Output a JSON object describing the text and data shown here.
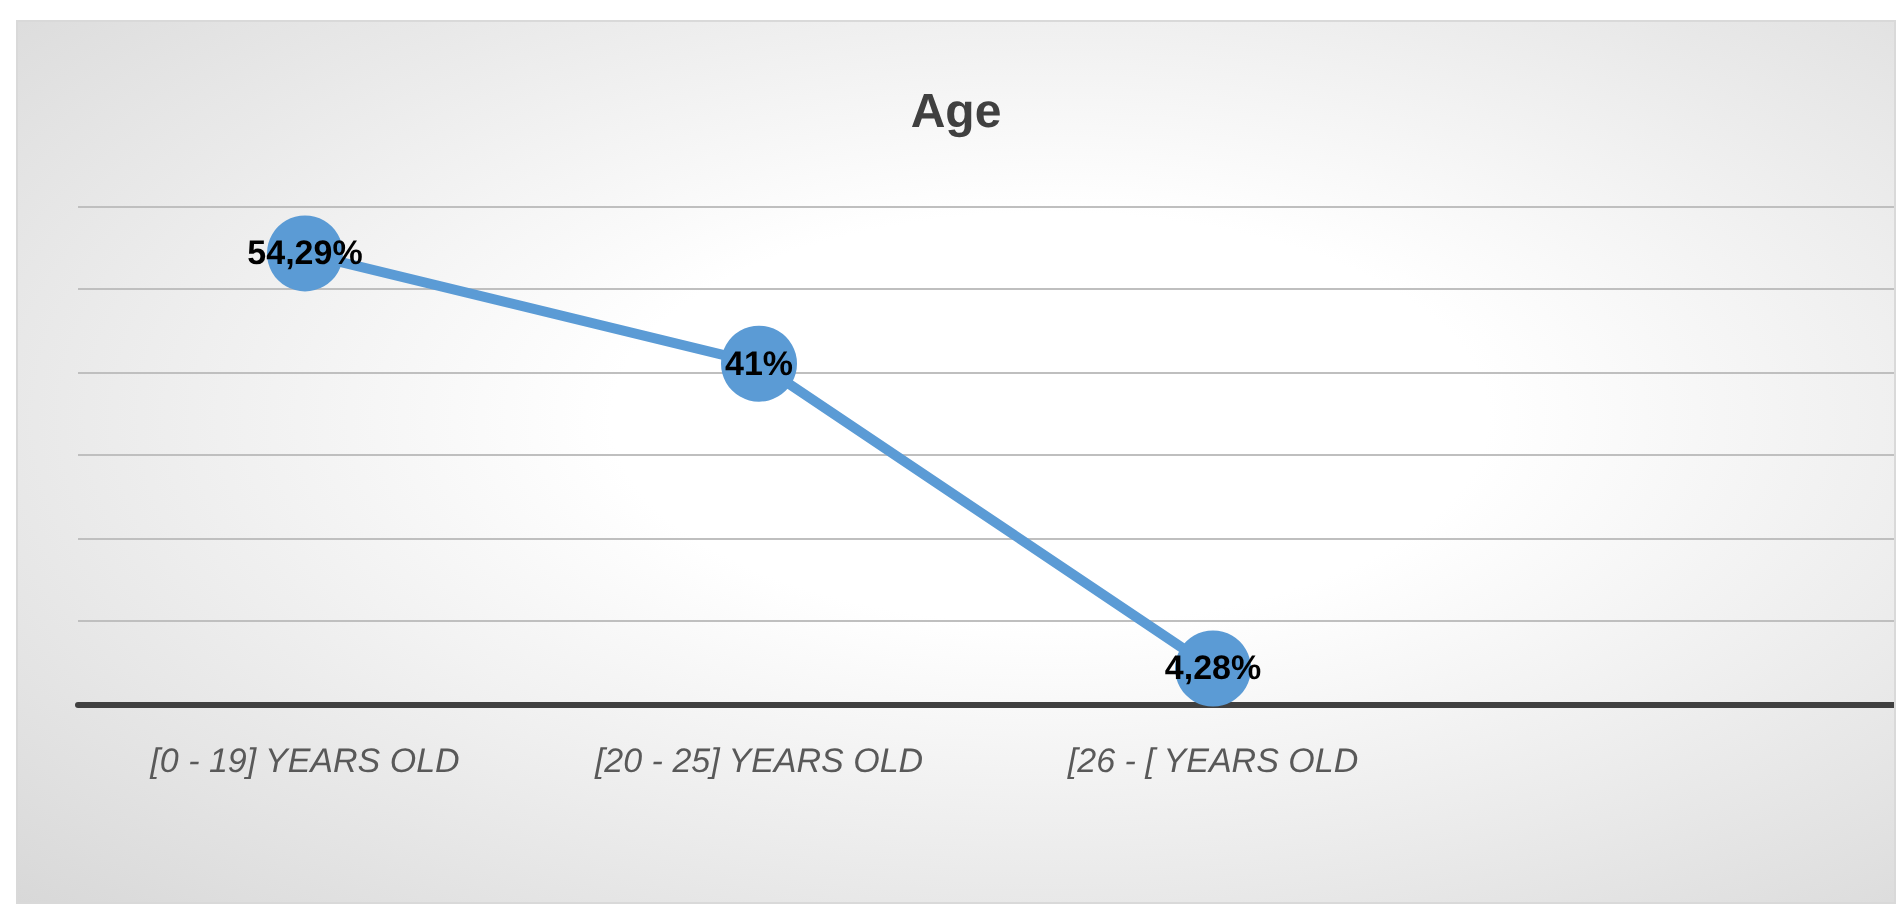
{
  "chart_data": {
    "type": "line",
    "title": "Age",
    "categories": [
      "[0 - 19] YEARS OLD",
      "[20 - 25] YEARS OLD",
      "[26 - [ YEARS OLD",
      null
    ],
    "series": [
      {
        "color": "#5b9bd5",
        "values": [
          54.29,
          41,
          4.28,
          null
        ],
        "value_labels": [
          "54,29%",
          "41%",
          "4,28%",
          null
        ]
      }
    ],
    "ylim": [
      0,
      60
    ],
    "yticks": [
      {
        "value": 0,
        "label": null
      },
      {
        "value": 10,
        "label": null
      },
      {
        "value": 20,
        "label": null
      },
      {
        "value": 30,
        "label": null
      },
      {
        "value": 40,
        "label": null
      },
      {
        "value": 50,
        "label": null
      },
      {
        "value": 60,
        "label": null
      }
    ],
    "tick_labels": "x",
    "grid": "y",
    "marker": "circle",
    "line_style": "solid"
  }
}
